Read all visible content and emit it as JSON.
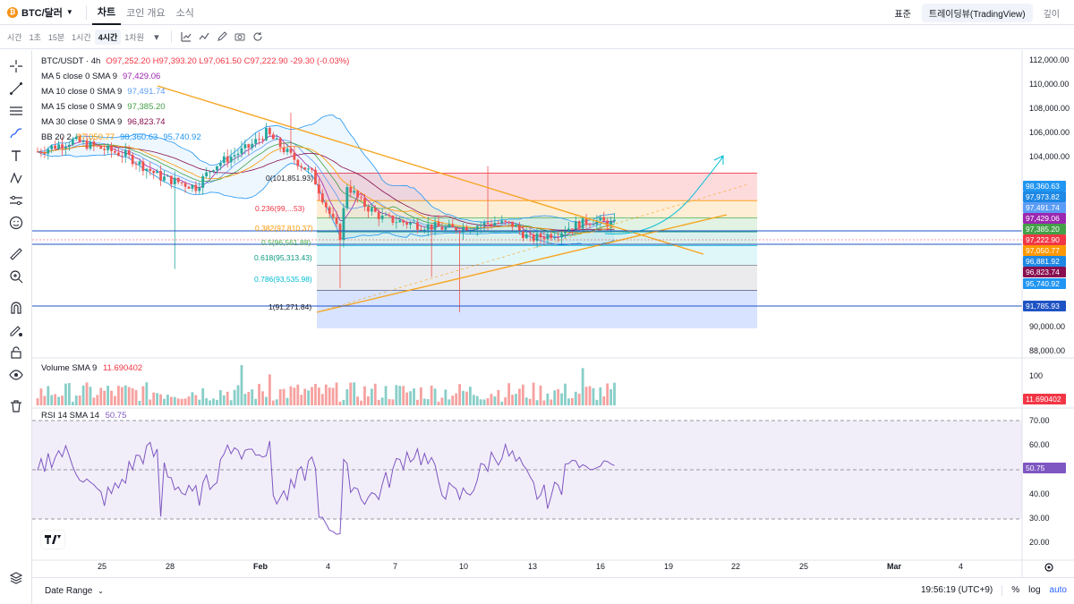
{
  "topbar": {
    "pair": "BTC/달러",
    "tabs": [
      "차트",
      "코인 개요",
      "소식"
    ],
    "right_buttons": [
      "표준",
      "트레이딩뷰(TradingView)",
      "깊이"
    ]
  },
  "intervals": [
    "시간",
    "1초",
    "15분",
    "1시간",
    "4시간",
    "1차원"
  ],
  "legend": {
    "symbol": "BTC/USDT · 4h",
    "ohlc": "O97,252.20 H97,393.20 L97,061.50 C97,222.90 -29.30 (-0.03%)",
    "ma5": {
      "label": "MA 5 close 0 SMA 9",
      "value": "97,429.06",
      "color": "#9c27b0"
    },
    "ma10": {
      "label": "MA 10 close 0 SMA 9",
      "value": "97,491.74",
      "color": "#5b9cf6"
    },
    "ma15": {
      "label": "MA 15 close 0 SMA 9",
      "value": "97,385.20",
      "color": "#43a047"
    },
    "ma30": {
      "label": "MA 30 close 0 SMA 9",
      "value": "96,823.74",
      "color": "#880e4f"
    },
    "bb_label": "BB 20 2",
    "bb_mid": "97,050.77",
    "bb_up": "98,360.63",
    "bb_low": "95,740.92"
  },
  "volume_legend": {
    "label": "Volume SMA 9",
    "value": "11.690402"
  },
  "rsi_legend": {
    "label": "RSI 14 SMA 14",
    "value": "50.75"
  },
  "price_scale": [
    "112,000.00",
    "110,000.00",
    "108,000.00",
    "106,000.00",
    "104,000.00",
    "90,000.00",
    "88,000.00"
  ],
  "volume_scale": [
    "100"
  ],
  "rsi_scale": [
    "70.00",
    "60.00",
    "40.00",
    "30.00",
    "20.00"
  ],
  "price_tags": [
    {
      "value": "98,360.63",
      "color": "#2196f3"
    },
    {
      "value": "97,973.82",
      "color": "#1e88e5"
    },
    {
      "value": "97,491.74",
      "color": "#5b9cf6"
    },
    {
      "value": "97,429.06",
      "color": "#9c27b0"
    },
    {
      "value": "97,385.20",
      "color": "#43a047"
    },
    {
      "value": "97,222.90",
      "color": "#f23645"
    },
    {
      "value": "97,050.77",
      "color": "#ff9800"
    },
    {
      "value": "96,881.92",
      "color": "#1e88e5"
    },
    {
      "value": "96,823.74",
      "color": "#880e4f"
    },
    {
      "value": "95,740.92",
      "color": "#2196f3"
    },
    {
      "value": "91,785.93",
      "color": "#1e53c4"
    }
  ],
  "volume_tag": {
    "value": "11.690402",
    "color": "#f23645"
  },
  "rsi_tag": {
    "value": "50.75",
    "color": "#7e57c2"
  },
  "fib_levels": [
    {
      "text": "0(101,851.93)",
      "color": "#787b86"
    },
    {
      "text": "0.236(99,...53)",
      "color": "#f23645"
    },
    {
      "text": "0.382(97,810.37)",
      "color": "#ff9800"
    },
    {
      "text": "0.5(96,561.88)",
      "color": "#4caf50"
    },
    {
      "text": "0.618(95,313.43)",
      "color": "#089981"
    },
    {
      "text": "0.786(93,535.98)",
      "color": "#00bcd4"
    },
    {
      "text": "1(91,271.84)",
      "color": "#787b86"
    }
  ],
  "time_axis": [
    "25",
    "28",
    "Feb",
    "4",
    "7",
    "10",
    "13",
    "16",
    "19",
    "22",
    "25",
    "Mar",
    "4"
  ],
  "bottom": {
    "date_range": "Date Range",
    "clock": "19:56:19 (UTC+9)",
    "pct": "%",
    "log": "log",
    "auto": "auto"
  },
  "colors": {
    "up": "#26a69a",
    "down": "#ef5350",
    "trend": "#f5a623",
    "bb": "#2196f3"
  }
}
